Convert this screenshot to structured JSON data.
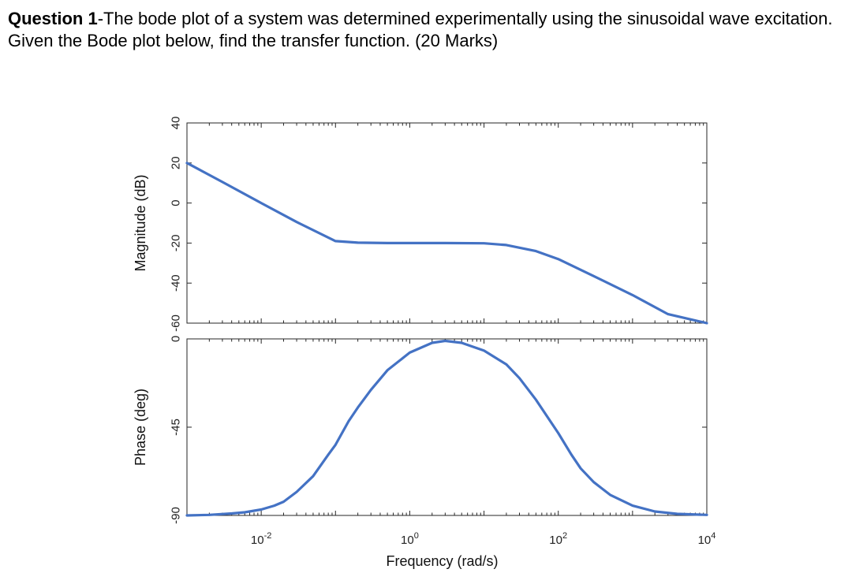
{
  "question": {
    "title_bold": "Question 1",
    "text": "-The bode plot of a system was determined experimentally using the sinusoidal wave excitation. Given the Bode plot below, find the transfer function. (20 Marks)"
  },
  "chart_data": [
    {
      "type": "line",
      "title": "",
      "xlabel": "",
      "ylabel": "Magnitude (dB)",
      "xscale": "log",
      "xlim": [
        0.001,
        10000
      ],
      "ylim": [
        -60,
        40
      ],
      "yticks": [
        40,
        20,
        0,
        -20,
        -40,
        -60
      ],
      "grid": false,
      "color": "#4472C4",
      "series": [
        {
          "x": [
            0.001,
            0.003,
            0.01,
            0.03,
            0.1,
            0.2,
            0.5,
            1,
            3,
            10,
            20,
            50,
            100,
            300,
            1000,
            3000,
            10000
          ],
          "y": [
            20,
            10.5,
            0,
            -9.5,
            -19,
            -19.8,
            -20,
            -20,
            -20,
            -20.1,
            -21,
            -24,
            -28,
            -36.5,
            -46,
            -55.5,
            -60
          ]
        }
      ]
    },
    {
      "type": "line",
      "title": "",
      "xlabel": "Frequency  (rad/s)",
      "ylabel": "Phase (deg)",
      "xscale": "log",
      "xlim": [
        0.001,
        10000
      ],
      "ylim": [
        -90,
        0
      ],
      "yticks": [
        0,
        -45,
        -90
      ],
      "xticks": [
        "10-2",
        "100",
        "102",
        "104"
      ],
      "grid": false,
      "color": "#4472C4",
      "series": [
        {
          "x": [
            0.001,
            0.002,
            0.004,
            0.006,
            0.01,
            0.015,
            0.02,
            0.03,
            0.05,
            0.08,
            0.1,
            0.15,
            0.2,
            0.3,
            0.5,
            1,
            2,
            3,
            5,
            10,
            20,
            30,
            50,
            100,
            150,
            200,
            300,
            500,
            1000,
            2000,
            4000,
            10000
          ],
          "y": [
            -90,
            -89.7,
            -89,
            -88.4,
            -87,
            -85,
            -83,
            -78,
            -70,
            -59,
            -54,
            -42,
            -35,
            -26,
            -16,
            -7,
            -2,
            -1,
            -2,
            -6,
            -13,
            -20,
            -31,
            -48,
            -59,
            -66,
            -73,
            -79.5,
            -85,
            -88,
            -89.2,
            -89.7
          ]
        }
      ]
    }
  ]
}
